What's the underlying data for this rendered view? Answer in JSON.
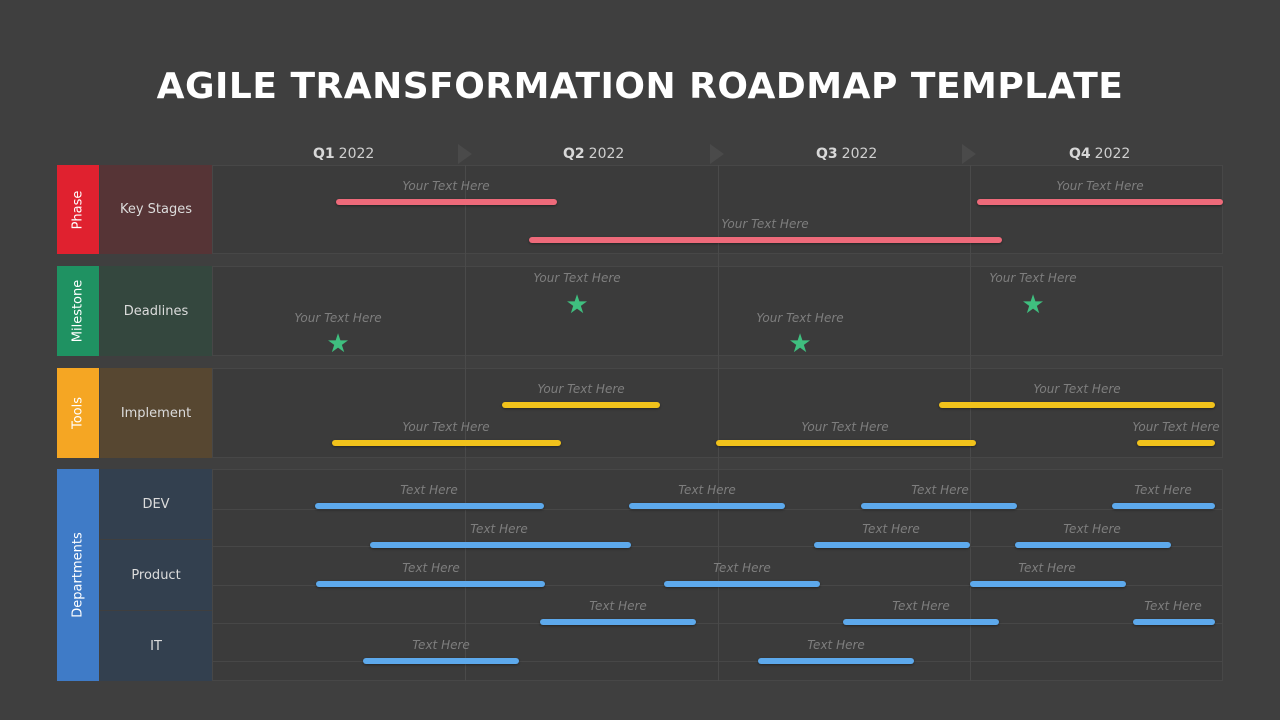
{
  "title": "AGILE TRANSFORMATION ROADMAP TEMPLATE",
  "quarters": [
    {
      "q": "Q1",
      "year": "2022"
    },
    {
      "q": "Q2",
      "year": "2022"
    },
    {
      "q": "Q3",
      "year": "2022"
    },
    {
      "q": "Q4",
      "year": "2022"
    }
  ],
  "categories": [
    {
      "name": "Phase",
      "color": "#e0212f"
    },
    {
      "name": "Milestone",
      "color": "#1f9262"
    },
    {
      "name": "Tools",
      "color": "#f5a623"
    },
    {
      "name": "Departments",
      "color": "#3f7bc7"
    }
  ],
  "subcategories": [
    {
      "name": "Key Stages",
      "color": "#563436"
    },
    {
      "name": "Deadlines",
      "color": "#34473e"
    },
    {
      "name": "Implement",
      "color": "#574731"
    },
    {
      "name": "DEV",
      "color": "#33404f"
    },
    {
      "name": "Product",
      "color": "#33404f"
    },
    {
      "name": "IT",
      "color": "#33404f"
    }
  ],
  "bar_colors": {
    "phase": "#ee6a7a",
    "tools": "#f1c21b",
    "departments": "#5da9ec"
  },
  "star_color": "#3fbf7f",
  "labels": {
    "p1": "Your Text Here",
    "p2": "Your Text Here",
    "p3": "Your Text Here",
    "m1": "Your Text Here",
    "m2": "Your Text Here",
    "m3": "Your Text Here",
    "m4": "Your Text Here",
    "t1": "Your Text Here",
    "t2": "Your Text Here",
    "t3": "Your Text Here",
    "t4": "Your Text Here",
    "t5": "Your Text Here",
    "d1": "Text Here",
    "d2": "Text Here",
    "d3": "Text Here",
    "d4": "Text Here",
    "d5": "Text Here",
    "d6": "Text Here",
    "d7": "Text Here",
    "d8": "Text Here",
    "d9": "Text Here",
    "d10": "Text Here",
    "d11": "Text Here",
    "d12": "Text Here",
    "d13": "Text Here",
    "d14": "Text Here",
    "d15": "Text Here"
  }
}
